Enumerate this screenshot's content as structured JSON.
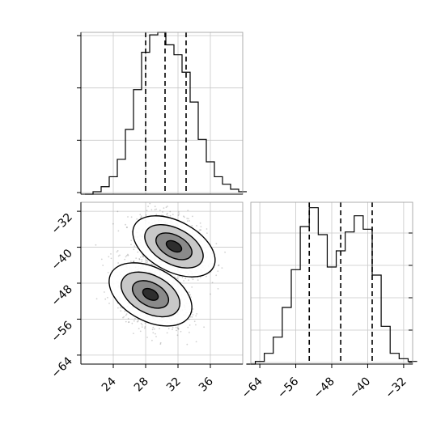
{
  "chart_data": [
    {
      "panel": "marginal-x",
      "type": "histogram",
      "x_range": [
        20,
        40
      ],
      "grid": true,
      "x_bins": [
        21.0,
        22.0,
        23.0,
        24.0,
        25.0,
        26.0,
        27.0,
        28.0,
        29.0,
        30.0,
        31.0,
        32.0,
        33.0,
        34.0,
        35.0,
        36.0,
        37.0,
        38.0,
        39.0,
        40.0
      ],
      "counts": [
        0.0,
        0.01,
        0.03,
        0.07,
        0.14,
        0.26,
        0.42,
        0.57,
        0.64,
        0.65,
        0.6,
        0.56,
        0.49,
        0.37,
        0.22,
        0.13,
        0.07,
        0.04,
        0.02,
        0.01
      ],
      "ylim": [
        0,
        0.65
      ],
      "quantiles": [
        28.0,
        30.4,
        33.0
      ],
      "y_ticks_count": 4,
      "x_ticks": [
        24,
        28,
        32,
        36
      ]
    },
    {
      "panel": "marginal-y",
      "type": "histogram",
      "x_range": [
        -66,
        -30
      ],
      "grid": true,
      "x_bins": [
        -66,
        -64,
        -62,
        -60,
        -58,
        -56,
        -54,
        -52,
        -50,
        -48,
        -46,
        -44,
        -42,
        -40,
        -38,
        -36,
        -34,
        -32,
        -30
      ],
      "counts": [
        0.0,
        0.01,
        0.04,
        0.1,
        0.21,
        0.35,
        0.51,
        0.58,
        0.48,
        0.36,
        0.42,
        0.49,
        0.55,
        0.5,
        0.33,
        0.14,
        0.04,
        0.02,
        0.01
      ],
      "ylim": [
        0,
        0.6
      ],
      "quantiles": [
        -53.0,
        -46.0,
        -39.0
      ],
      "x_ticks": [
        -64,
        -56,
        -48,
        -40,
        -32
      ],
      "x_tick_labels": [
        "−64",
        "−56",
        "−48",
        "−40",
        "−32"
      ]
    },
    {
      "panel": "joint",
      "type": "scatter",
      "x_range": [
        20,
        40
      ],
      "y_range": [
        -66,
        -30
      ],
      "grid": true,
      "clusters": [
        {
          "center_x": 31.5,
          "center_y": -39.8,
          "spread_x": 2.0,
          "spread_y": 3.1
        },
        {
          "center_x": 28.6,
          "center_y": -50.5,
          "spread_x": 2.0,
          "spread_y": 3.3
        }
      ],
      "x_ticks": [
        24,
        28,
        32,
        36
      ],
      "y_ticks": [
        -32,
        -40,
        -48,
        -56,
        -64
      ],
      "y_tick_labels": [
        "−32",
        "−40",
        "−48",
        "−56",
        "−64"
      ]
    }
  ]
}
